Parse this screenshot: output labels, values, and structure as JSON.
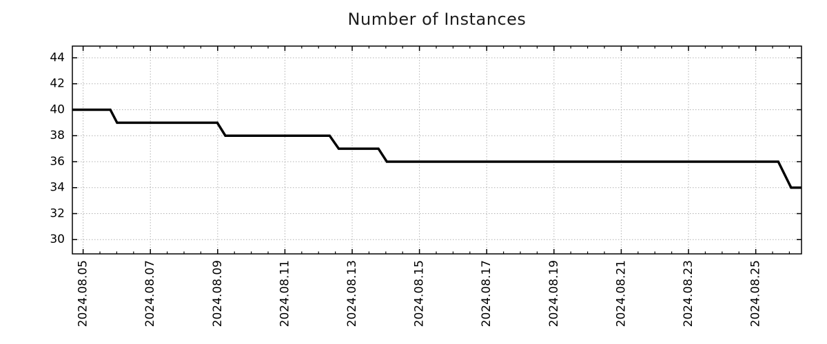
{
  "chart_data": {
    "type": "line",
    "title": "Number of Instances",
    "x_axis": {
      "tick_labels": [
        "2024.08.05",
        "2024.08.07",
        "2024.08.09",
        "2024.08.11",
        "2024.08.13",
        "2024.08.15",
        "2024.08.17",
        "2024.08.19",
        "2024.08.21",
        "2024.08.23",
        "2024.08.25"
      ],
      "tick_days": [
        0,
        2,
        4,
        6,
        8,
        10,
        12,
        14,
        16,
        18,
        20
      ],
      "minor_step_days": 0.5,
      "range_days": [
        -0.32,
        21.36
      ],
      "unit": "days since 2024.08.05"
    },
    "y_axis": {
      "ticks": [
        30,
        32,
        34,
        36,
        38,
        40,
        42,
        44
      ],
      "range": [
        28.9,
        44.9
      ]
    },
    "series": [
      {
        "name": "instances",
        "color": "#000000",
        "line_width": 3.5,
        "points_day_value": [
          [
            -0.32,
            40
          ],
          [
            0.81,
            40
          ],
          [
            1.01,
            39
          ],
          [
            3.99,
            39
          ],
          [
            4.23,
            38
          ],
          [
            7.33,
            38
          ],
          [
            7.6,
            37
          ],
          [
            8.78,
            37
          ],
          [
            9.03,
            36
          ],
          [
            20.67,
            36
          ],
          [
            21.05,
            34
          ],
          [
            21.36,
            34
          ]
        ]
      }
    ],
    "grid": {
      "style": "dotted",
      "color": "#b0b0b0"
    },
    "legend": "none",
    "background": "#ffffff"
  },
  "styles": {
    "text_color": "#1a1a1a",
    "tick_label_color": "#000000",
    "border_color": "#000000"
  }
}
